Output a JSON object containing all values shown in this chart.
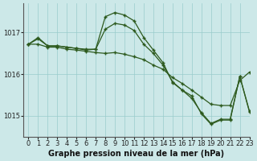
{
  "title": "Graphe pression niveau de la mer (hPa)",
  "bg_color": "#cce8e8",
  "grid_color": "#99cccc",
  "line_color": "#2d5a1e",
  "xlim": [
    -0.5,
    23
  ],
  "ylim": [
    1014.5,
    1017.7
  ],
  "yticks": [
    1015,
    1016,
    1017
  ],
  "xticks": [
    0,
    1,
    2,
    3,
    4,
    5,
    6,
    7,
    8,
    9,
    10,
    11,
    12,
    13,
    14,
    15,
    16,
    17,
    18,
    19,
    20,
    21,
    22,
    23
  ],
  "series1_x": [
    0,
    1,
    2,
    3,
    4,
    5,
    6,
    7,
    8,
    9,
    10,
    11,
    12,
    13,
    14,
    15,
    16,
    17,
    18,
    19,
    20,
    21,
    22,
    23
  ],
  "series1_y": [
    1016.72,
    1016.85,
    1016.68,
    1016.68,
    1016.65,
    1016.62,
    1016.6,
    1016.6,
    1017.08,
    1017.22,
    1017.18,
    1017.05,
    1016.72,
    1016.5,
    1016.22,
    1015.82,
    1015.62,
    1015.42,
    1015.08,
    1014.82,
    1014.92,
    1014.92,
    1015.95,
    1015.12
  ],
  "series2_x": [
    0,
    1,
    2,
    3,
    4,
    5,
    6,
    7,
    8,
    9,
    10,
    11,
    12,
    13,
    14,
    15,
    16,
    17,
    18,
    19,
    20,
    21,
    22,
    23
  ],
  "series2_y": [
    1016.72,
    1016.88,
    1016.68,
    1016.68,
    1016.65,
    1016.62,
    1016.58,
    1016.6,
    1017.38,
    1017.48,
    1017.42,
    1017.28,
    1016.88,
    1016.58,
    1016.28,
    1015.8,
    1015.62,
    1015.48,
    1015.05,
    1014.8,
    1014.9,
    1014.9,
    1015.95,
    1015.1
  ],
  "series3_x": [
    0,
    1,
    2,
    3,
    4,
    5,
    6,
    7,
    8,
    9,
    10,
    11,
    12,
    13,
    14,
    15,
    16,
    17,
    18,
    19,
    20,
    21,
    22,
    23
  ],
  "series3_y": [
    1016.72,
    1016.72,
    1016.65,
    1016.65,
    1016.6,
    1016.58,
    1016.55,
    1016.52,
    1016.5,
    1016.52,
    1016.48,
    1016.42,
    1016.35,
    1016.22,
    1016.12,
    1015.92,
    1015.78,
    1015.62,
    1015.45,
    1015.28,
    1015.25,
    1015.25,
    1015.85,
    1016.05
  ],
  "marker": "+",
  "markersize": 3.5,
  "linewidth": 0.9,
  "title_fontsize": 7,
  "tick_fontsize": 6
}
